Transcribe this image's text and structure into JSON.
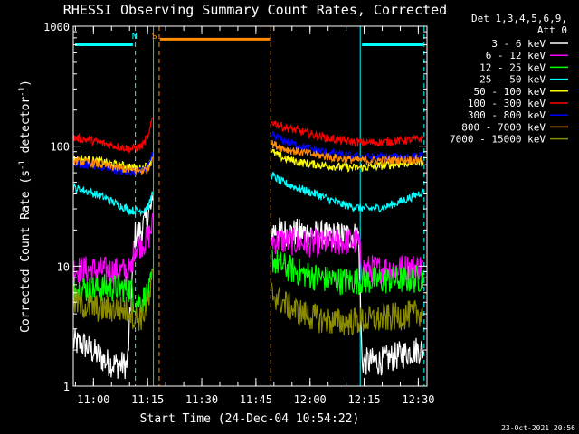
{
  "chart_data": {
    "type": "line",
    "title": "RHESSI Observing Summary Count Rates, Corrected",
    "xlabel": "Start Time (24-Dec-04 10:54:22)",
    "ylabel": "Corrected Count Rate (s^-1 detector^-1)",
    "ylabel_base": "Corrected Count Rate (s",
    "ylabel_mid": " detector",
    "ylabel_end": ")",
    "ylabel_sup": "-1",
    "yscale": "log",
    "ylim": [
      1,
      1000
    ],
    "xlim_minutes": [
      0,
      98
    ],
    "x_ticks": [
      {
        "label": "11:00",
        "minute": 5.6
      },
      {
        "label": "11:15",
        "minute": 20.6
      },
      {
        "label": "11:30",
        "minute": 35.6
      },
      {
        "label": "11:45",
        "minute": 50.6
      },
      {
        "label": "12:00",
        "minute": 65.6
      },
      {
        "label": "12:15",
        "minute": 80.6
      },
      {
        "label": "12:30",
        "minute": 95.6
      }
    ],
    "y_ticks": [
      {
        "label": "1",
        "value": 1
      },
      {
        "label": "10",
        "value": 10
      },
      {
        "label": "100",
        "value": 100
      },
      {
        "label": "1000",
        "value": 1000
      }
    ],
    "detectors_line1": "Det 1,3,4,5,6,9,",
    "detectors_line2": "Att 0",
    "legend_placement": "right",
    "markers": [
      {
        "label": "N",
        "color": "#00ffff",
        "minute": 17.0
      },
      {
        "label": "S",
        "color": "#ff8c00",
        "minute": 22.5
      }
    ],
    "time_markers": [
      {
        "minute": 0.0,
        "style": "solid",
        "color": "#00ffff"
      },
      {
        "minute": 17.2,
        "style": "dashed",
        "color": "#00ffff"
      },
      {
        "minute": 22.2,
        "style": "solid",
        "color": "#00ff00"
      },
      {
        "minute": 23.8,
        "style": "dashed",
        "color": "#ff8c00"
      },
      {
        "minute": 54.7,
        "style": "dashed",
        "color": "#ff8c00"
      },
      {
        "minute": 79.5,
        "style": "solid",
        "color": "#00ffff"
      },
      {
        "minute": 97.2,
        "style": "dashed",
        "color": "#00ffff"
      }
    ],
    "flag_bars": [
      {
        "label": "night",
        "color": "#00ffff",
        "value": 700,
        "ranges": [
          [
            0.5,
            16.5
          ],
          [
            80.0,
            97.0
          ]
        ]
      },
      {
        "label": "saa",
        "color": "#ff8c00",
        "value": 780,
        "ranges": [
          [
            24.0,
            54.5
          ]
        ]
      }
    ],
    "series": [
      {
        "name": "3 - 6 keV",
        "color": "#ffffff",
        "segments": [
          {
            "x": [
              0,
              3,
              6,
              9,
              12,
              15,
              17,
              18,
              19,
              20,
              21,
              22
            ],
            "y": [
              2.3,
              2.2,
              1.9,
              1.6,
              1.5,
              1.5,
              18,
              19,
              20,
              24,
              28,
              32
            ]
          },
          {
            "x": [
              55,
              60,
              65,
              70,
              75,
              79,
              80,
              85,
              90,
              95,
              97
            ],
            "y": [
              20,
              19,
              19,
              18,
              18,
              18,
              1.6,
              1.6,
              1.8,
              2.0,
              2.0
            ]
          }
        ]
      },
      {
        "name": "6 - 12 keV",
        "color": "#ff00ff",
        "segments": [
          {
            "x": [
              0,
              4,
              8,
              12,
              16,
              17,
              18,
              20,
              21,
              22
            ],
            "y": [
              9.5,
              9.3,
              9.2,
              9.1,
              9.1,
              14.5,
              15,
              16,
              18,
              22
            ]
          },
          {
            "x": [
              55,
              60,
              65,
              70,
              75,
              79,
              80,
              85,
              90,
              95,
              97
            ],
            "y": [
              16.5,
              16,
              15.5,
              15.5,
              16,
              16,
              9.5,
              9.5,
              9.6,
              9.8,
              9.9
            ]
          }
        ]
      },
      {
        "name": "12 - 25 keV",
        "color": "#00ff00",
        "segments": [
          {
            "x": [
              0,
              5,
              10,
              16,
              17,
              19,
              21,
              22
            ],
            "y": [
              6.5,
              6.5,
              6.6,
              6.5,
              5.0,
              5.2,
              6,
              8
            ]
          },
          {
            "x": [
              55,
              58,
              62,
              66,
              70,
              75,
              79,
              80,
              85,
              90,
              95,
              97
            ],
            "y": [
              11.5,
              10,
              9.0,
              8.3,
              7.8,
              7.5,
              7.6,
              7.6,
              7.6,
              7.7,
              7.8,
              8.0
            ]
          }
        ]
      },
      {
        "name": "25 - 50 keV",
        "color": "#00ffff",
        "segments": [
          {
            "x": [
              0,
              4,
              8,
              12,
              16,
              19,
              21,
              22
            ],
            "y": [
              45,
              42,
              38,
              33,
              29,
              29,
              32,
              42
            ]
          },
          {
            "x": [
              55,
              58,
              62,
              66,
              70,
              74,
              78,
              82,
              86,
              90,
              94,
              97
            ],
            "y": [
              57,
              50,
              45,
              41,
              37,
              33,
              31,
              30,
              31,
              34,
              38,
              42
            ]
          }
        ]
      },
      {
        "name": "50 - 100 keV",
        "color": "#ffff00",
        "segments": [
          {
            "x": [
              0,
              4,
              8,
              12,
              16,
              19,
              21,
              22
            ],
            "y": [
              78,
              77,
              74,
              70,
              67,
              65,
              70,
              85
            ]
          },
          {
            "x": [
              55,
              58,
              62,
              66,
              70,
              74,
              78,
              82,
              86,
              90,
              94,
              97
            ],
            "y": [
              90,
              80,
              74,
              71,
              69,
              67,
              66,
              67,
              69,
              71,
              73,
              75
            ]
          }
        ]
      },
      {
        "name": "100 - 300 keV",
        "color": "#ff0000",
        "segments": [
          {
            "x": [
              0,
              4,
              8,
              12,
              16,
              19,
              21,
              22
            ],
            "y": [
              118,
              113,
              106,
              100,
              95,
              100,
              125,
              175
            ]
          },
          {
            "x": [
              55,
              58,
              62,
              66,
              70,
              74,
              78,
              82,
              86,
              90,
              94,
              97
            ],
            "y": [
              160,
              145,
              135,
              125,
              118,
              112,
              108,
              107,
              108,
              111,
              113,
              116
            ]
          }
        ]
      },
      {
        "name": "300 - 800 keV",
        "color": "#0000ff",
        "segments": [
          {
            "x": [
              0,
              4,
              8,
              12,
              16,
              19,
              21,
              22
            ],
            "y": [
              72,
              70,
              67,
              63,
              60,
              62,
              68,
              85
            ]
          },
          {
            "x": [
              55,
              58,
              62,
              66,
              70,
              74,
              78,
              82,
              86,
              90,
              94,
              97
            ],
            "y": [
              125,
              112,
              102,
              95,
              89,
              85,
              82,
              81,
              81,
              81,
              82,
              83
            ]
          }
        ]
      },
      {
        "name": "800 - 7000 keV",
        "color": "#ff8c00",
        "segments": [
          {
            "x": [
              0,
              4,
              8,
              12,
              16,
              19,
              21,
              22
            ],
            "y": [
              75,
              73,
              70,
              66,
              63,
              62,
              66,
              82
            ]
          },
          {
            "x": [
              55,
              58,
              62,
              66,
              70,
              74,
              78,
              82,
              86,
              90,
              94,
              97
            ],
            "y": [
              105,
              96,
              90,
              86,
              82,
              79,
              77,
              76,
              76,
              77,
              77,
              78
            ]
          }
        ]
      },
      {
        "name": "7000 - 15000 keV",
        "color": "#8b8b00",
        "segments": [
          {
            "x": [
              0,
              4,
              8,
              12,
              16,
              17,
              19,
              21,
              22
            ],
            "y": [
              5.0,
              4.6,
              4.4,
              4.4,
              4.3,
              3.6,
              3.8,
              5,
              8
            ]
          },
          {
            "x": [
              55,
              58,
              62,
              66,
              70,
              75,
              79,
              80,
              85,
              90,
              95,
              97
            ],
            "y": [
              6.0,
              5.0,
              4.2,
              3.8,
              3.5,
              3.4,
              3.5,
              3.5,
              3.6,
              3.8,
              4.0,
              4.2
            ]
          }
        ]
      }
    ]
  },
  "footer": {
    "timestamp": "23-Oct-2021 20:56"
  }
}
